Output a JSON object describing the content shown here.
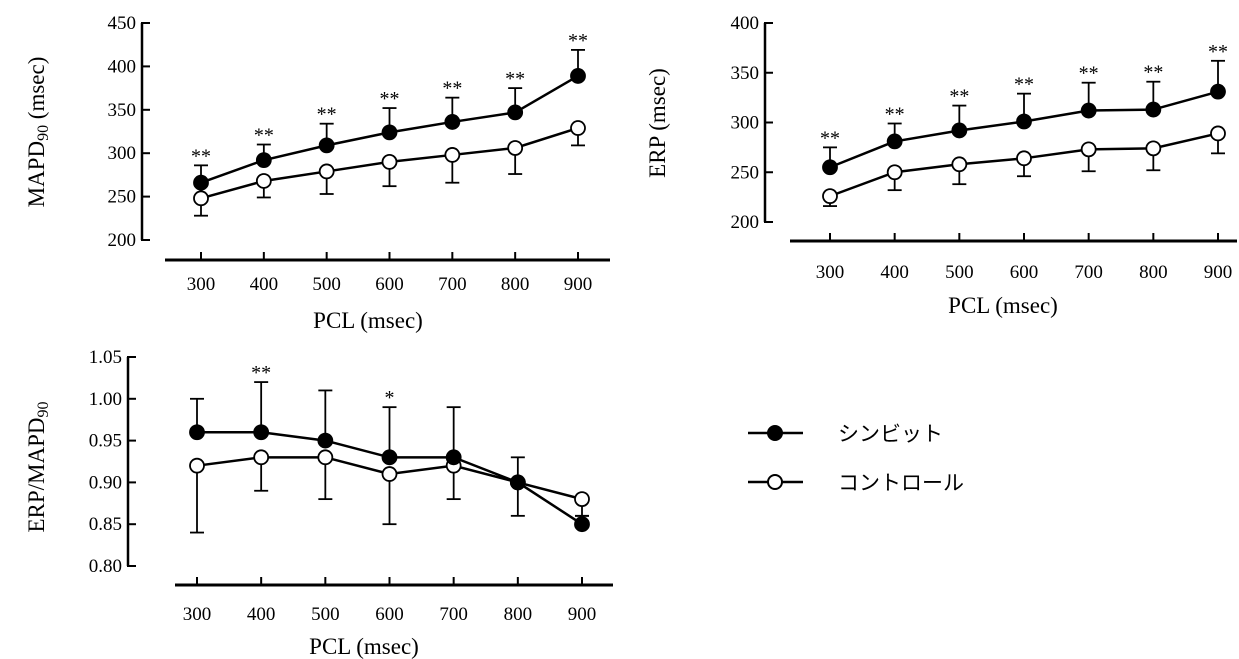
{
  "legend": {
    "items": [
      {
        "label": "シンビット",
        "marker": "filled"
      },
      {
        "label": "コントロール",
        "marker": "open"
      }
    ]
  },
  "chart_data": [
    {
      "type": "line",
      "x": [
        300,
        400,
        500,
        600,
        700,
        800,
        900
      ],
      "xlabel": "PCL (msec)",
      "ylabel": "MAPD",
      "ylabel_sub": "90",
      "ylabel_suffix": " (msec)",
      "ylim": [
        200,
        450
      ],
      "yticks": [
        "200",
        "250",
        "300",
        "350",
        "400",
        "450"
      ],
      "xticks": [
        "300",
        "400",
        "500",
        "600",
        "700",
        "800",
        "900"
      ],
      "series": [
        {
          "name": "シンビット",
          "marker": "filled",
          "values": [
            266,
            292,
            309,
            324,
            336,
            347,
            389
          ],
          "err_up": [
            20,
            18,
            25,
            28,
            28,
            28,
            30
          ],
          "err_down": [
            0,
            0,
            0,
            0,
            0,
            0,
            0
          ]
        },
        {
          "name": "コントロール",
          "marker": "open",
          "values": [
            248,
            268,
            279,
            290,
            298,
            306,
            329
          ],
          "err_up": [
            0,
            0,
            0,
            0,
            0,
            0,
            0
          ],
          "err_down": [
            20,
            19,
            26,
            28,
            32,
            30,
            20
          ]
        }
      ],
      "annotations": [
        "**",
        "**",
        "**",
        "**",
        "**",
        "**",
        "**"
      ]
    },
    {
      "type": "line",
      "x": [
        300,
        400,
        500,
        600,
        700,
        800,
        900
      ],
      "xlabel": "PCL (msec)",
      "ylabel": "ERP (msec)",
      "ylim": [
        200,
        400
      ],
      "yticks": [
        "200",
        "250",
        "300",
        "350",
        "400"
      ],
      "xticks": [
        "300",
        "400",
        "500",
        "600",
        "700",
        "800",
        "900"
      ],
      "series": [
        {
          "name": "シンビット",
          "marker": "filled",
          "values": [
            255,
            281,
            292,
            301,
            312,
            313,
            331
          ],
          "err_up": [
            20,
            18,
            25,
            28,
            28,
            28,
            31
          ],
          "err_down": [
            0,
            0,
            0,
            0,
            0,
            0,
            0
          ]
        },
        {
          "name": "コントロール",
          "marker": "open",
          "values": [
            226,
            250,
            258,
            264,
            273,
            274,
            289
          ],
          "err_up": [
            0,
            0,
            0,
            0,
            0,
            0,
            0
          ],
          "err_down": [
            10,
            18,
            20,
            18,
            22,
            22,
            20
          ]
        }
      ],
      "annotations": [
        "**",
        "**",
        "**",
        "**",
        "**",
        "**",
        "**"
      ]
    },
    {
      "type": "line",
      "x": [
        300,
        400,
        500,
        600,
        700,
        800,
        900
      ],
      "xlabel": "PCL (msec)",
      "ylabel": "ERP/MAPD",
      "ylabel_sub": "90",
      "ylim": [
        0.8,
        1.05
      ],
      "yticks": [
        "0.80",
        "0.85",
        "0.90",
        "0.95",
        "1.00",
        "1.05"
      ],
      "xticks": [
        "300",
        "400",
        "500",
        "600",
        "700",
        "800",
        "900"
      ],
      "series": [
        {
          "name": "シンビット",
          "marker": "filled",
          "values": [
            0.96,
            0.96,
            0.95,
            0.93,
            0.93,
            0.9,
            0.85
          ],
          "err_up": [
            0.04,
            0.06,
            0.06,
            0.06,
            0.06,
            0.03,
            0.01
          ],
          "err_down": [
            0,
            0,
            0,
            0,
            0,
            0,
            0
          ]
        },
        {
          "name": "コントロール",
          "marker": "open",
          "values": [
            0.92,
            0.93,
            0.93,
            0.91,
            0.92,
            0.9,
            0.88
          ],
          "err_up": [
            0,
            0,
            0,
            0,
            0,
            0,
            0
          ],
          "err_down": [
            0.08,
            0.04,
            0.05,
            0.06,
            0.04,
            0.04,
            0.02
          ]
        }
      ],
      "annotations": [
        "",
        "**",
        "",
        "*",
        "",
        "",
        ""
      ]
    }
  ]
}
